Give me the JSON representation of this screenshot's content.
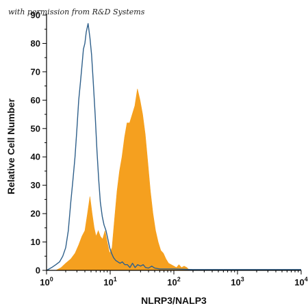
{
  "credit": "with permission from R&D Systems",
  "chart_data": {
    "type": "area",
    "xlabel": "NLRP3/NALP3",
    "ylabel": "Relative Cell Number",
    "x_scale": "log",
    "xlim": [
      1,
      10000
    ],
    "ylim": [
      0,
      90
    ],
    "y_ticks": [
      0,
      10,
      20,
      30,
      40,
      50,
      60,
      70,
      80,
      90
    ],
    "x_ticks": [
      {
        "base": "10",
        "exp": "0",
        "value": 1
      },
      {
        "base": "10",
        "exp": "1",
        "value": 10
      },
      {
        "base": "10",
        "exp": "2",
        "value": 100
      },
      {
        "base": "10",
        "exp": "3",
        "value": 1000
      },
      {
        "base": "10",
        "exp": "4",
        "value": 10000
      }
    ],
    "grid": false,
    "series": [
      {
        "role": "stained",
        "style": "filled",
        "color": "#f5a01f",
        "x": [
          1.4,
          1.7,
          2.0,
          2.4,
          2.8,
          3.2,
          3.6,
          4.0,
          4.4,
          4.8,
          5.2,
          5.6,
          6.0,
          6.5,
          7.0,
          7.6,
          8.3,
          9.0,
          9.8,
          10.7,
          11.7,
          12.8,
          14.0,
          15.3,
          16.8,
          18.4,
          20.2,
          22.2,
          24.4,
          26.8,
          29.4,
          32.3,
          35.5,
          39.0,
          42.8,
          47.0,
          51.6,
          56.7,
          62.3,
          68.4,
          75.2,
          82.6,
          90.7,
          99.7,
          110,
          120,
          132,
          145,
          160,
          175,
          1000,
          10000
        ],
        "y": [
          0,
          1,
          2.5,
          4,
          6,
          9,
          12,
          14,
          20,
          26,
          20,
          15,
          12,
          14,
          12,
          11,
          14,
          10,
          6,
          8,
          18,
          28,
          35,
          40,
          47,
          52,
          52,
          55,
          58,
          64,
          60,
          55,
          48,
          38,
          28,
          20,
          14,
          10,
          7,
          6,
          4,
          2.5,
          2,
          1.5,
          1,
          2,
          1,
          1.5,
          1,
          0,
          0,
          0
        ]
      },
      {
        "role": "control",
        "style": "outline",
        "color": "#2e5f8a",
        "x": [
          1.0,
          1.2,
          1.4,
          1.6,
          1.8,
          2.0,
          2.2,
          2.4,
          2.6,
          2.8,
          3.0,
          3.2,
          3.4,
          3.6,
          3.8,
          4.0,
          4.2,
          4.5,
          4.8,
          5.1,
          5.4,
          5.8,
          6.2,
          6.6,
          7.0,
          7.5,
          8.0,
          8.6,
          9.2,
          9.8,
          10.5,
          11.3,
          12.2,
          13.2,
          14.3,
          15.5,
          17.0,
          18.6,
          20.4,
          22.4,
          24.6,
          27.0,
          30.0,
          33.0,
          36.0,
          40.0,
          45.0,
          50.0,
          60.0,
          70.0,
          100,
          200,
          1000,
          10000
        ],
        "y": [
          0,
          1,
          2,
          3,
          5,
          8,
          14,
          24,
          32,
          40,
          50,
          60,
          66,
          72,
          78,
          80,
          84,
          87,
          82,
          76,
          67,
          55,
          42,
          32,
          24,
          19,
          16,
          14,
          11,
          8,
          6,
          4.5,
          3.5,
          3,
          2.5,
          3,
          2,
          2,
          1,
          2.5,
          1,
          2,
          1.5,
          2,
          1,
          0.8,
          1.5,
          0.8,
          0.5,
          0.5,
          0.5,
          0.3,
          0.3,
          0.3
        ]
      }
    ]
  }
}
